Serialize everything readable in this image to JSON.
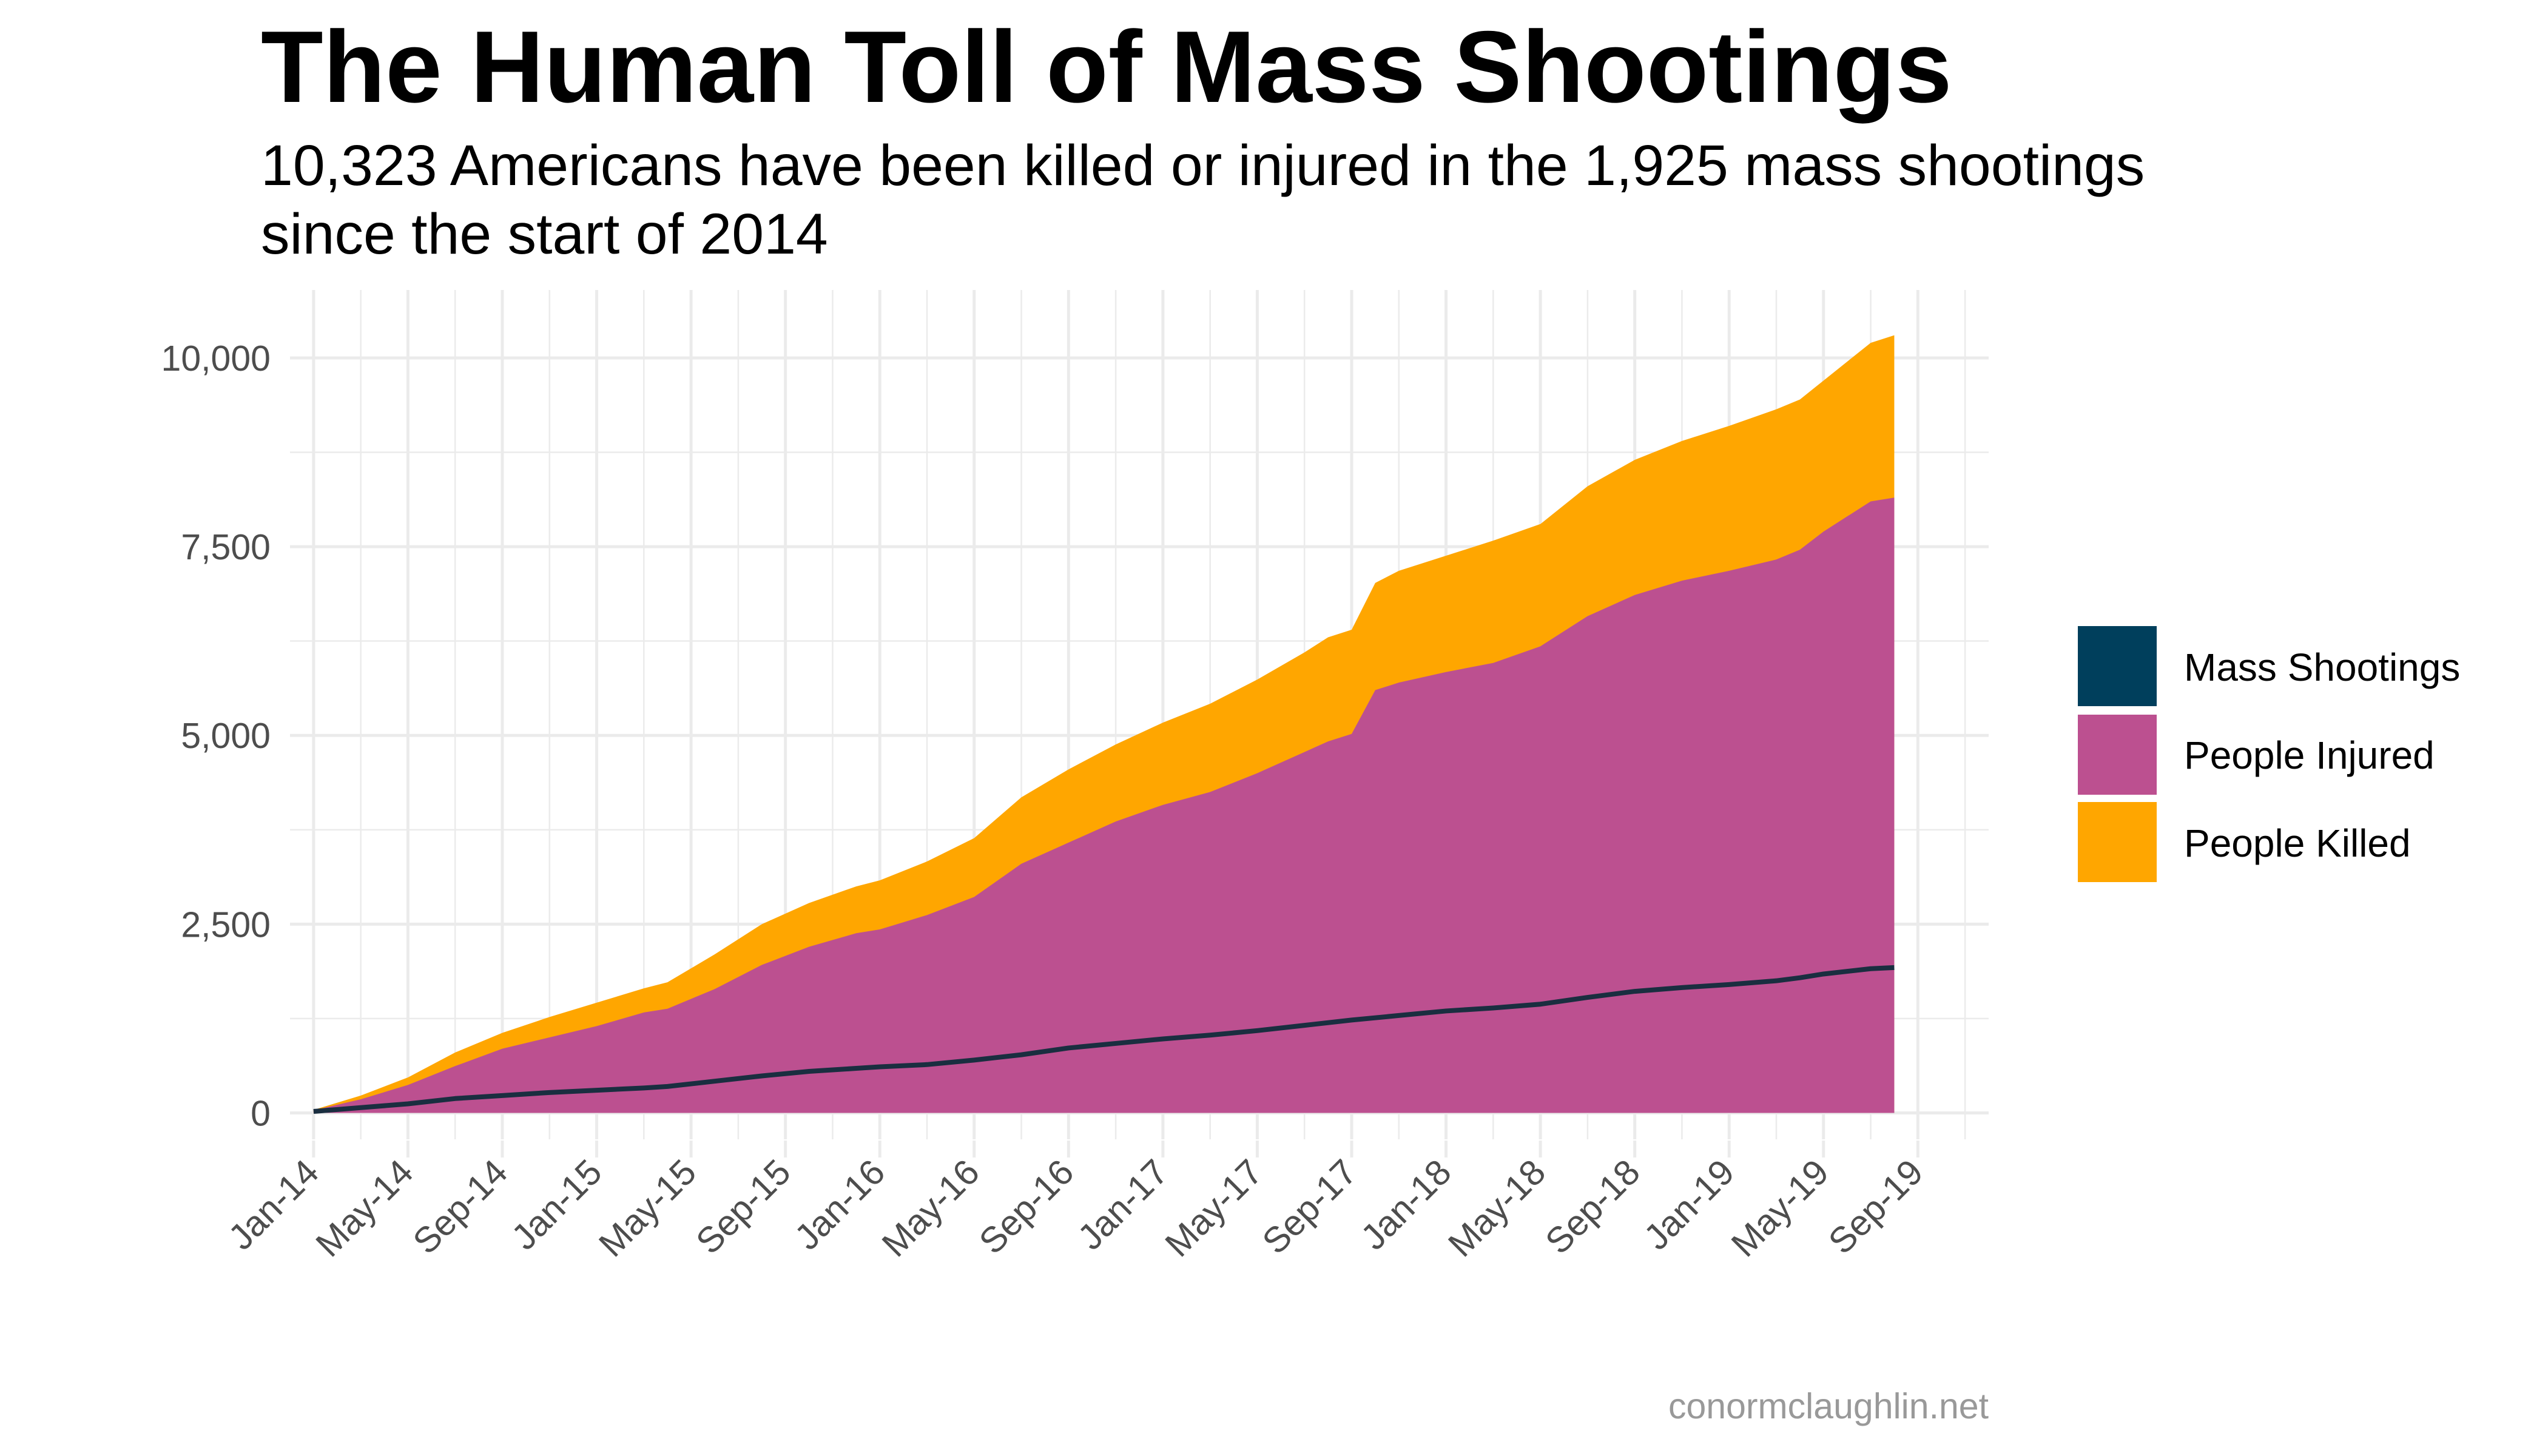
{
  "chart_data": {
    "type": "area",
    "title": "The Human Toll of Mass Shootings",
    "subtitle_lines": [
      "10,323 Americans have been killed or injured in the 1,925 mass shootings",
      "since the start of 2014"
    ],
    "caption": "conormclaughlin.net",
    "x_ticks": [
      "Jan-14",
      "May-14",
      "Sep-14",
      "Jan-15",
      "May-15",
      "Sep-15",
      "Jan-16",
      "May-16",
      "Sep-16",
      "Jan-17",
      "May-17",
      "Sep-17",
      "Jan-18",
      "May-18",
      "Sep-18",
      "Jan-19",
      "May-19",
      "Sep-19"
    ],
    "x_tick_index": [
      0,
      4,
      8,
      12,
      16,
      20,
      24,
      28,
      32,
      36,
      40,
      44,
      48,
      52,
      56,
      60,
      64,
      68
    ],
    "x_range": [
      -1,
      71
    ],
    "y_range": [
      -350,
      10900
    ],
    "y_ticks": [
      0,
      2500,
      5000,
      7500,
      10000
    ],
    "y_tick_labels": [
      "0",
      "2,500",
      "5,000",
      "7,500",
      "10,000"
    ],
    "legend": [
      {
        "name": "Mass Shootings",
        "color": "#003F5C"
      },
      {
        "name": "People Injured",
        "color": "#BC5090"
      },
      {
        "name": "People Killed",
        "color": "#FFA600"
      }
    ],
    "series": [
      {
        "name": "People Injured + Killed (cumulative total)",
        "type": "area",
        "color": "#FFA600",
        "points": [
          [
            0,
            40
          ],
          [
            2,
            230
          ],
          [
            4,
            470
          ],
          [
            6,
            800
          ],
          [
            8,
            1060
          ],
          [
            10,
            1270
          ],
          [
            12,
            1460
          ],
          [
            14,
            1650
          ],
          [
            15,
            1730
          ],
          [
            17,
            2100
          ],
          [
            19,
            2500
          ],
          [
            21,
            2780
          ],
          [
            23,
            3000
          ],
          [
            24,
            3080
          ],
          [
            26,
            3330
          ],
          [
            28,
            3640
          ],
          [
            30,
            4180
          ],
          [
            32,
            4550
          ],
          [
            34,
            4880
          ],
          [
            36,
            5170
          ],
          [
            38,
            5420
          ],
          [
            40,
            5740
          ],
          [
            42,
            6100
          ],
          [
            43,
            6300
          ],
          [
            44,
            6400
          ],
          [
            45,
            7020
          ],
          [
            46,
            7180
          ],
          [
            48,
            7380
          ],
          [
            50,
            7580
          ],
          [
            52,
            7800
          ],
          [
            54,
            8300
          ],
          [
            56,
            8650
          ],
          [
            58,
            8900
          ],
          [
            60,
            9100
          ],
          [
            62,
            9320
          ],
          [
            63,
            9450
          ],
          [
            64,
            9700
          ],
          [
            66,
            10200
          ],
          [
            67,
            10300
          ]
        ]
      },
      {
        "name": "People Injured (cumulative)",
        "type": "area",
        "color": "#BC5090",
        "points": [
          [
            0,
            35
          ],
          [
            2,
            180
          ],
          [
            4,
            370
          ],
          [
            6,
            620
          ],
          [
            8,
            850
          ],
          [
            10,
            1000
          ],
          [
            12,
            1150
          ],
          [
            14,
            1330
          ],
          [
            15,
            1380
          ],
          [
            17,
            1640
          ],
          [
            19,
            1960
          ],
          [
            21,
            2200
          ],
          [
            23,
            2380
          ],
          [
            24,
            2430
          ],
          [
            26,
            2620
          ],
          [
            28,
            2860
          ],
          [
            30,
            3300
          ],
          [
            32,
            3580
          ],
          [
            34,
            3860
          ],
          [
            36,
            4080
          ],
          [
            38,
            4250
          ],
          [
            40,
            4500
          ],
          [
            42,
            4780
          ],
          [
            43,
            4920
          ],
          [
            44,
            5020
          ],
          [
            45,
            5600
          ],
          [
            46,
            5700
          ],
          [
            48,
            5840
          ],
          [
            50,
            5960
          ],
          [
            52,
            6180
          ],
          [
            54,
            6580
          ],
          [
            56,
            6860
          ],
          [
            58,
            7050
          ],
          [
            60,
            7180
          ],
          [
            62,
            7330
          ],
          [
            63,
            7460
          ],
          [
            64,
            7700
          ],
          [
            66,
            8100
          ],
          [
            67,
            8150
          ]
        ]
      },
      {
        "name": "Mass Shootings (cumulative)",
        "type": "line",
        "color": "#1A2E40",
        "points": [
          [
            0,
            20
          ],
          [
            2,
            70
          ],
          [
            4,
            120
          ],
          [
            6,
            190
          ],
          [
            8,
            230
          ],
          [
            10,
            270
          ],
          [
            12,
            300
          ],
          [
            14,
            330
          ],
          [
            15,
            350
          ],
          [
            17,
            420
          ],
          [
            19,
            490
          ],
          [
            21,
            550
          ],
          [
            23,
            590
          ],
          [
            24,
            610
          ],
          [
            26,
            640
          ],
          [
            28,
            700
          ],
          [
            30,
            770
          ],
          [
            32,
            860
          ],
          [
            34,
            920
          ],
          [
            36,
            980
          ],
          [
            38,
            1030
          ],
          [
            40,
            1090
          ],
          [
            42,
            1160
          ],
          [
            44,
            1230
          ],
          [
            46,
            1290
          ],
          [
            48,
            1350
          ],
          [
            50,
            1390
          ],
          [
            52,
            1440
          ],
          [
            54,
            1530
          ],
          [
            56,
            1610
          ],
          [
            58,
            1660
          ],
          [
            60,
            1700
          ],
          [
            62,
            1750
          ],
          [
            63,
            1790
          ],
          [
            64,
            1840
          ],
          [
            66,
            1910
          ],
          [
            67,
            1925
          ]
        ]
      }
    ]
  }
}
